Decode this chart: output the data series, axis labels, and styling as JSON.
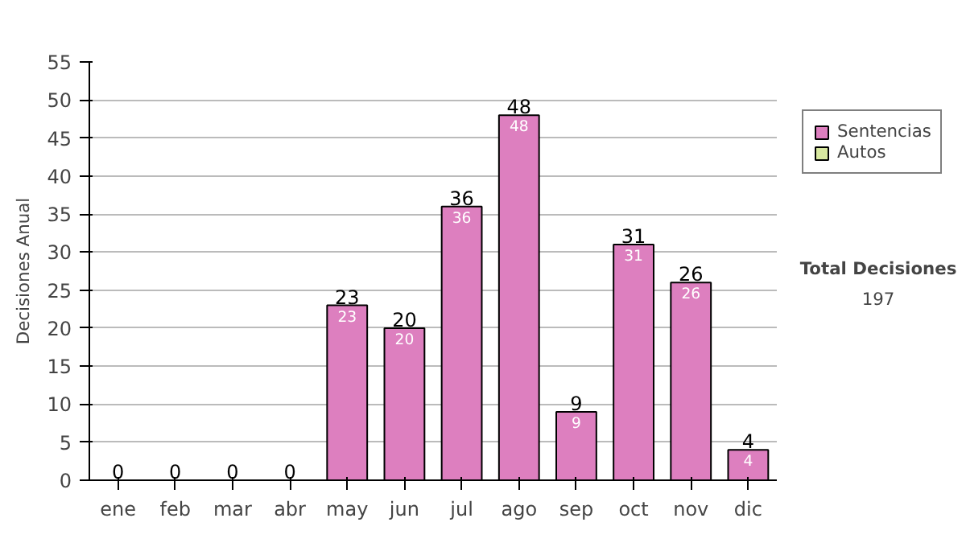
{
  "chart_data": {
    "type": "bar",
    "stacked": true,
    "ylabel": "Decisiones Anual",
    "categories": [
      "ene",
      "feb",
      "mar",
      "abr",
      "may",
      "jun",
      "jul",
      "ago",
      "sep",
      "oct",
      "nov",
      "dic"
    ],
    "series": [
      {
        "name": "Sentencias",
        "color": "#dd7fbf",
        "values": [
          0,
          0,
          0,
          0,
          23,
          20,
          36,
          48,
          9,
          31,
          26,
          4
        ],
        "value_labels": [
          null,
          null,
          null,
          null,
          "23",
          "20",
          "36",
          "48",
          "9",
          "31",
          "26",
          "4"
        ]
      },
      {
        "name": "Autos",
        "color": "#d8e8a0",
        "values": [
          0,
          0,
          0,
          0,
          0,
          0,
          0,
          0,
          0,
          0,
          0,
          0
        ]
      }
    ],
    "totals": [
      "0",
      "0",
      "0",
      "0",
      "23",
      "20",
      "36",
      "48",
      "9",
      "31",
      "26",
      "4"
    ],
    "ylim": [
      0,
      55
    ],
    "yticks": [
      0,
      5,
      10,
      15,
      20,
      25,
      30,
      35,
      40,
      45,
      50,
      55
    ],
    "grid": "y",
    "legend": "right",
    "annotations": [
      "Total Decisiones",
      "197"
    ]
  }
}
